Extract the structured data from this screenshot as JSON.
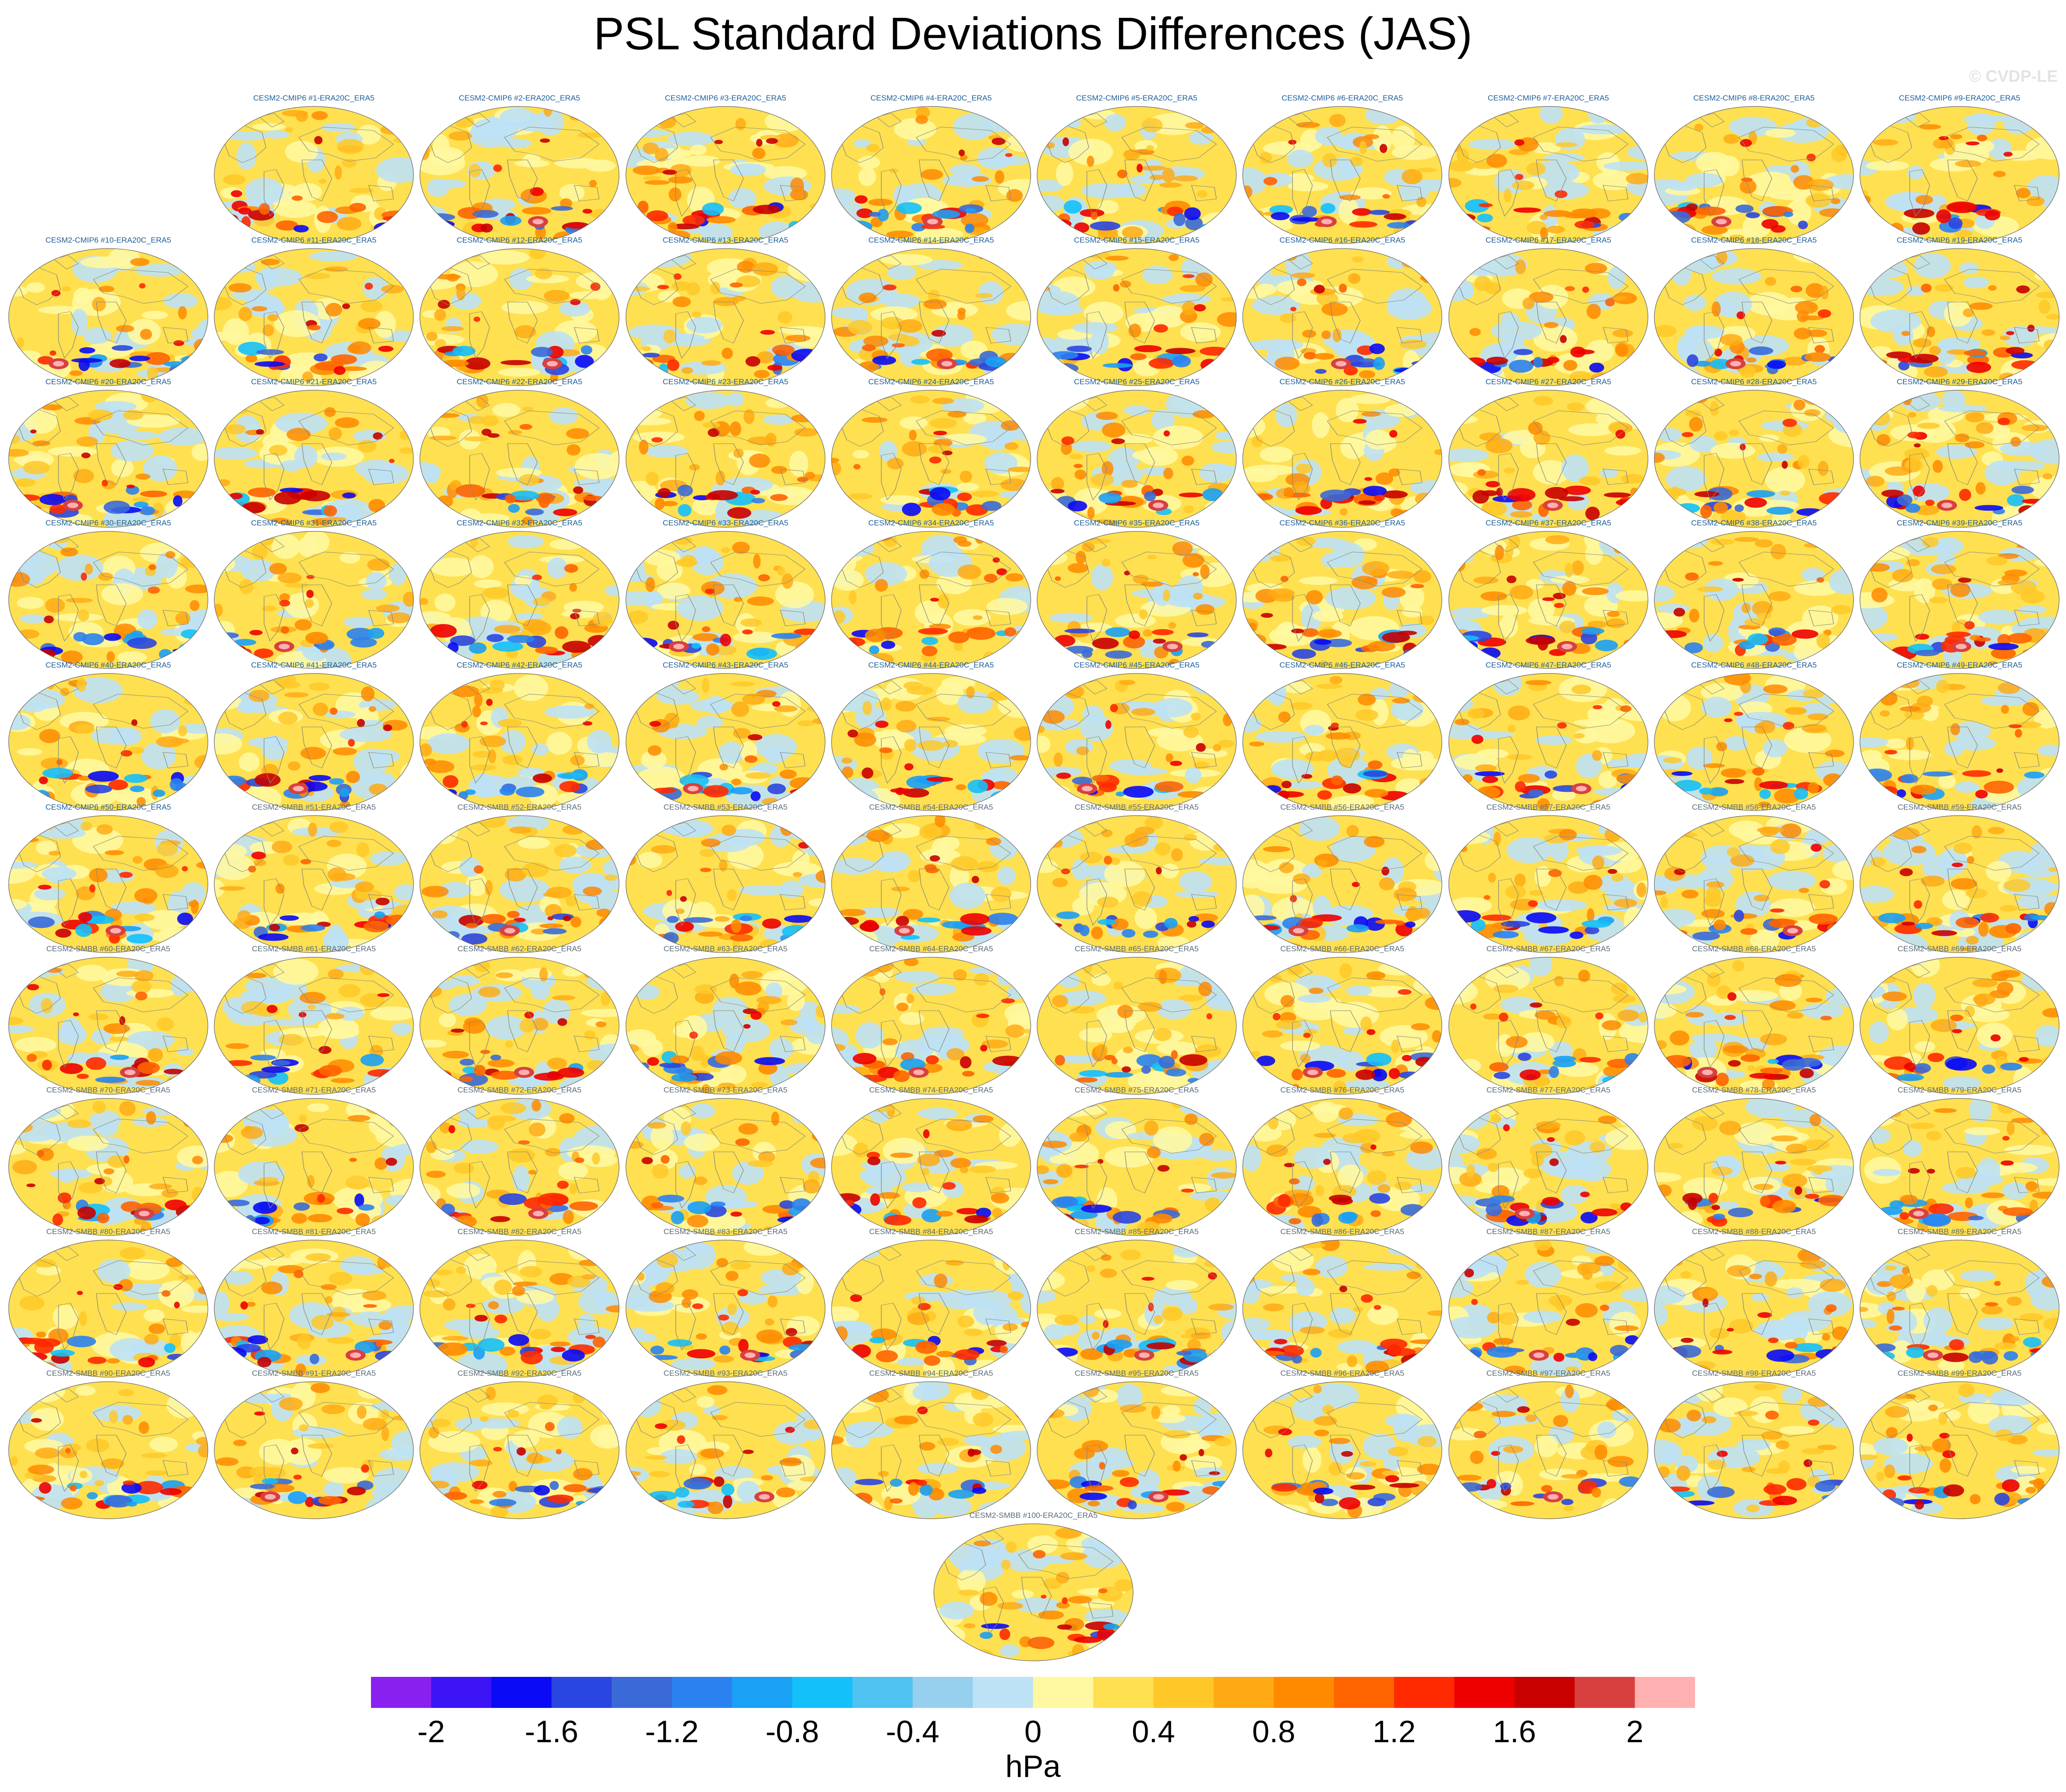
{
  "title": "PSL Standard Deviations Differences (JAS)",
  "watermark": "© CVDP-LE",
  "colors": {
    "cmip6_label": "#1f5f9a",
    "smbb_label": "#5a6b7a",
    "coast": "#8a8a7a"
  },
  "color_scale": {
    "units": "hPa",
    "levels": [
      -2.2,
      -2,
      -1.8,
      -1.6,
      -1.4,
      -1.2,
      -1,
      -0.8,
      -0.6,
      -0.4,
      -0.2,
      0,
      0.2,
      0.4,
      0.6,
      0.8,
      1,
      1.2,
      1.4,
      1.6,
      1.8,
      2,
      2.2
    ],
    "colors": [
      "#8a20f0",
      "#3c14f5",
      "#0a0af5",
      "#2a46e0",
      "#3a6ad8",
      "#2a82f0",
      "#1aa0f5",
      "#14c0fa",
      "#50c2f0",
      "#96d0ee",
      "#bee2f5",
      "#fff8a0",
      "#ffe050",
      "#ffc828",
      "#ffaa14",
      "#ff8a00",
      "#ff6400",
      "#ff2a00",
      "#ee0000",
      "#c80000",
      "#d84040",
      "#ffb0b0"
    ],
    "tick_labels": [
      "-2",
      "-1.6",
      "-1.2",
      "-0.8",
      "-0.4",
      "0",
      "0.4",
      "0.8",
      "1.2",
      "1.6",
      "2"
    ]
  },
  "panels": [
    {
      "label": "CESM2-CMIP6 #1-ERA20C_ERA5",
      "group": "cmip6"
    },
    {
      "label": "CESM2-CMIP6 #2-ERA20C_ERA5",
      "group": "cmip6"
    },
    {
      "label": "CESM2-CMIP6 #3-ERA20C_ERA5",
      "group": "cmip6"
    },
    {
      "label": "CESM2-CMIP6 #4-ERA20C_ERA5",
      "group": "cmip6"
    },
    {
      "label": "CESM2-CMIP6 #5-ERA20C_ERA5",
      "group": "cmip6"
    },
    {
      "label": "CESM2-CMIP6 #6-ERA20C_ERA5",
      "group": "cmip6"
    },
    {
      "label": "CESM2-CMIP6 #7-ERA20C_ERA5",
      "group": "cmip6"
    },
    {
      "label": "CESM2-CMIP6 #8-ERA20C_ERA5",
      "group": "cmip6"
    },
    {
      "label": "CESM2-CMIP6 #9-ERA20C_ERA5",
      "group": "cmip6"
    },
    {
      "label": "CESM2-CMIP6 #10-ERA20C_ERA5",
      "group": "cmip6"
    },
    {
      "label": "CESM2-CMIP6 #11-ERA20C_ERA5",
      "group": "cmip6"
    },
    {
      "label": "CESM2-CMIP6 #12-ERA20C_ERA5",
      "group": "cmip6"
    },
    {
      "label": "CESM2-CMIP6 #13-ERA20C_ERA5",
      "group": "cmip6"
    },
    {
      "label": "CESM2-CMIP6 #14-ERA20C_ERA5",
      "group": "cmip6"
    },
    {
      "label": "CESM2-CMIP6 #15-ERA20C_ERA5",
      "group": "cmip6"
    },
    {
      "label": "CESM2-CMIP6 #16-ERA20C_ERA5",
      "group": "cmip6"
    },
    {
      "label": "CESM2-CMIP6 #17-ERA20C_ERA5",
      "group": "cmip6"
    },
    {
      "label": "CESM2-CMIP6 #18-ERA20C_ERA5",
      "group": "cmip6"
    },
    {
      "label": "CESM2-CMIP6 #19-ERA20C_ERA5",
      "group": "cmip6"
    },
    {
      "label": "CESM2-CMIP6 #20-ERA20C_ERA5",
      "group": "cmip6"
    },
    {
      "label": "CESM2-CMIP6 #21-ERA20C_ERA5",
      "group": "cmip6"
    },
    {
      "label": "CESM2-CMIP6 #22-ERA20C_ERA5",
      "group": "cmip6"
    },
    {
      "label": "CESM2-CMIP6 #23-ERA20C_ERA5",
      "group": "cmip6"
    },
    {
      "label": "CESM2-CMIP6 #24-ERA20C_ERA5",
      "group": "cmip6"
    },
    {
      "label": "CESM2-CMIP6 #25-ERA20C_ERA5",
      "group": "cmip6"
    },
    {
      "label": "CESM2-CMIP6 #26-ERA20C_ERA5",
      "group": "cmip6"
    },
    {
      "label": "CESM2-CMIP6 #27-ERA20C_ERA5",
      "group": "cmip6"
    },
    {
      "label": "CESM2-CMIP6 #28-ERA20C_ERA5",
      "group": "cmip6"
    },
    {
      "label": "CESM2-CMIP6 #29-ERA20C_ERA5",
      "group": "cmip6"
    },
    {
      "label": "CESM2-CMIP6 #30-ERA20C_ERA5",
      "group": "cmip6"
    },
    {
      "label": "CESM2-CMIP6 #31-ERA20C_ERA5",
      "group": "cmip6"
    },
    {
      "label": "CESM2-CMIP6 #32-ERA20C_ERA5",
      "group": "cmip6"
    },
    {
      "label": "CESM2-CMIP6 #33-ERA20C_ERA5",
      "group": "cmip6"
    },
    {
      "label": "CESM2-CMIP6 #34-ERA20C_ERA5",
      "group": "cmip6"
    },
    {
      "label": "CESM2-CMIP6 #35-ERA20C_ERA5",
      "group": "cmip6"
    },
    {
      "label": "CESM2-CMIP6 #36-ERA20C_ERA5",
      "group": "cmip6"
    },
    {
      "label": "CESM2-CMIP6 #37-ERA20C_ERA5",
      "group": "cmip6"
    },
    {
      "label": "CESM2-CMIP6 #38-ERA20C_ERA5",
      "group": "cmip6"
    },
    {
      "label": "CESM2-CMIP6 #39-ERA20C_ERA5",
      "group": "cmip6"
    },
    {
      "label": "CESM2-CMIP6 #40-ERA20C_ERA5",
      "group": "cmip6"
    },
    {
      "label": "CESM2-CMIP6 #41-ERA20C_ERA5",
      "group": "cmip6"
    },
    {
      "label": "CESM2-CMIP6 #42-ERA20C_ERA5",
      "group": "cmip6"
    },
    {
      "label": "CESM2-CMIP6 #43-ERA20C_ERA5",
      "group": "cmip6"
    },
    {
      "label": "CESM2-CMIP6 #44-ERA20C_ERA5",
      "group": "cmip6"
    },
    {
      "label": "CESM2-CMIP6 #45-ERA20C_ERA5",
      "group": "cmip6"
    },
    {
      "label": "CESM2-CMIP6 #46-ERA20C_ERA5",
      "group": "cmip6"
    },
    {
      "label": "CESM2-CMIP6 #47-ERA20C_ERA5",
      "group": "cmip6"
    },
    {
      "label": "CESM2-CMIP6 #48-ERA20C_ERA5",
      "group": "cmip6"
    },
    {
      "label": "CESM2-CMIP6 #49-ERA20C_ERA5",
      "group": "cmip6"
    },
    {
      "label": "CESM2-CMIP6 #50-ERA20C_ERA5",
      "group": "cmip6"
    },
    {
      "label": "CESM2-SMBB #51-ERA20C_ERA5",
      "group": "smbb"
    },
    {
      "label": "CESM2-SMBB #52-ERA20C_ERA5",
      "group": "smbb"
    },
    {
      "label": "CESM2-SMBB #53-ERA20C_ERA5",
      "group": "smbb"
    },
    {
      "label": "CESM2-SMBB #54-ERA20C_ERA5",
      "group": "smbb"
    },
    {
      "label": "CESM2-SMBB #55-ERA20C_ERA5",
      "group": "smbb"
    },
    {
      "label": "CESM2-SMBB #56-ERA20C_ERA5",
      "group": "smbb"
    },
    {
      "label": "CESM2-SMBB #57-ERA20C_ERA5",
      "group": "smbb"
    },
    {
      "label": "CESM2-SMBB #58-ERA20C_ERA5",
      "group": "smbb"
    },
    {
      "label": "CESM2-SMBB #59-ERA20C_ERA5",
      "group": "smbb"
    },
    {
      "label": "CESM2-SMBB #60-ERA20C_ERA5",
      "group": "smbb"
    },
    {
      "label": "CESM2-SMBB #61-ERA20C_ERA5",
      "group": "smbb"
    },
    {
      "label": "CESM2-SMBB #62-ERA20C_ERA5",
      "group": "smbb"
    },
    {
      "label": "CESM2-SMBB #63-ERA20C_ERA5",
      "group": "smbb"
    },
    {
      "label": "CESM2-SMBB #64-ERA20C_ERA5",
      "group": "smbb"
    },
    {
      "label": "CESM2-SMBB #65-ERA20C_ERA5",
      "group": "smbb"
    },
    {
      "label": "CESM2-SMBB #66-ERA20C_ERA5",
      "group": "smbb"
    },
    {
      "label": "CESM2-SMBB #67-ERA20C_ERA5",
      "group": "smbb"
    },
    {
      "label": "CESM2-SMBB #68-ERA20C_ERA5",
      "group": "smbb"
    },
    {
      "label": "CESM2-SMBB #69-ERA20C_ERA5",
      "group": "smbb"
    },
    {
      "label": "CESM2-SMBB #70-ERA20C_ERA5",
      "group": "smbb"
    },
    {
      "label": "CESM2-SMBB #71-ERA20C_ERA5",
      "group": "smbb"
    },
    {
      "label": "CESM2-SMBB #72-ERA20C_ERA5",
      "group": "smbb"
    },
    {
      "label": "CESM2-SMBB #73-ERA20C_ERA5",
      "group": "smbb"
    },
    {
      "label": "CESM2-SMBB #74-ERA20C_ERA5",
      "group": "smbb"
    },
    {
      "label": "CESM2-SMBB #75-ERA20C_ERA5",
      "group": "smbb"
    },
    {
      "label": "CESM2-SMBB #76-ERA20C_ERA5",
      "group": "smbb"
    },
    {
      "label": "CESM2-SMBB #77-ERA20C_ERA5",
      "group": "smbb"
    },
    {
      "label": "CESM2-SMBB #78-ERA20C_ERA5",
      "group": "smbb"
    },
    {
      "label": "CESM2-SMBB #79-ERA20C_ERA5",
      "group": "smbb"
    },
    {
      "label": "CESM2-SMBB #80-ERA20C_ERA5",
      "group": "smbb"
    },
    {
      "label": "CESM2-SMBB #81-ERA20C_ERA5",
      "group": "smbb"
    },
    {
      "label": "CESM2-SMBB #82-ERA20C_ERA5",
      "group": "smbb"
    },
    {
      "label": "CESM2-SMBB #83-ERA20C_ERA5",
      "group": "smbb"
    },
    {
      "label": "CESM2-SMBB #84-ERA20C_ERA5",
      "group": "smbb"
    },
    {
      "label": "CESM2-SMBB #85-ERA20C_ERA5",
      "group": "smbb"
    },
    {
      "label": "CESM2-SMBB #86-ERA20C_ERA5",
      "group": "smbb"
    },
    {
      "label": "CESM2-SMBB #87-ERA20C_ERA5",
      "group": "smbb"
    },
    {
      "label": "CESM2-SMBB #88-ERA20C_ERA5",
      "group": "smbb"
    },
    {
      "label": "CESM2-SMBB #89-ERA20C_ERA5",
      "group": "smbb"
    },
    {
      "label": "CESM2-SMBB #90-ERA20C_ERA5",
      "group": "smbb"
    },
    {
      "label": "CESM2-SMBB #91-ERA20C_ERA5",
      "group": "smbb"
    },
    {
      "label": "CESM2-SMBB #92-ERA20C_ERA5",
      "group": "smbb"
    },
    {
      "label": "CESM2-SMBB #93-ERA20C_ERA5",
      "group": "smbb"
    },
    {
      "label": "CESM2-SMBB #94-ERA20C_ERA5",
      "group": "smbb"
    },
    {
      "label": "CESM2-SMBB #95-ERA20C_ERA5",
      "group": "smbb"
    },
    {
      "label": "CESM2-SMBB #96-ERA20C_ERA5",
      "group": "smbb"
    },
    {
      "label": "CESM2-SMBB #97-ERA20C_ERA5",
      "group": "smbb"
    },
    {
      "label": "CESM2-SMBB #98-ERA20C_ERA5",
      "group": "smbb"
    },
    {
      "label": "CESM2-SMBB #99-ERA20C_ERA5",
      "group": "smbb"
    },
    {
      "label": "CESM2-SMBB #100-ERA20C_ERA5",
      "group": "smbb"
    }
  ]
}
